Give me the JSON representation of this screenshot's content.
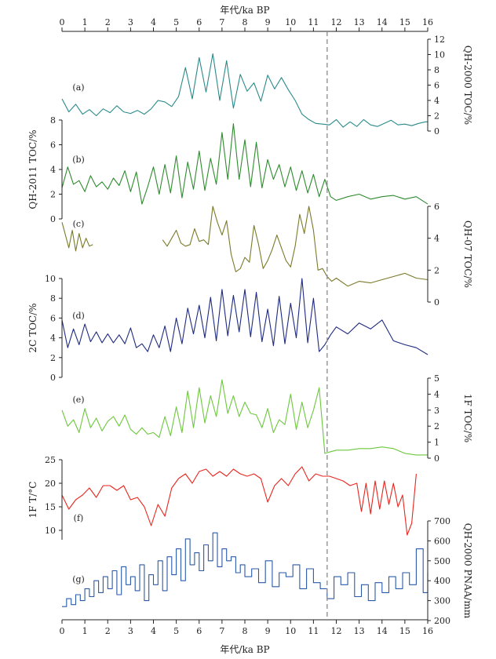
{
  "chart_data": {
    "type": "line",
    "x_axis": {
      "label_top": "年代/ka BP",
      "label_bottom": "年代/ka BP",
      "range": [
        0,
        16
      ],
      "ticks": [
        "0",
        "1",
        "2",
        "3",
        "4",
        "5",
        "6",
        "7",
        "8",
        "9",
        "10",
        "11",
        "12",
        "13",
        "14",
        "15",
        "16"
      ]
    },
    "reference_line_x": 11.6,
    "panels": [
      {
        "id": "a",
        "tag": "(a)",
        "color": "#2a8a8a",
        "ylabel": "QH-2000 TOC/%",
        "axis_side": "right",
        "ylim": [
          0,
          12
        ],
        "ticks": [
          "0",
          "2",
          "4",
          "6",
          "8",
          "10",
          "12"
        ],
        "x": [
          0,
          0.3,
          0.6,
          0.9,
          1.2,
          1.5,
          1.8,
          2.1,
          2.4,
          2.7,
          3.0,
          3.3,
          3.6,
          3.9,
          4.2,
          4.5,
          4.8,
          5.1,
          5.4,
          5.7,
          6.0,
          6.3,
          6.6,
          6.9,
          7.2,
          7.5,
          7.8,
          8.1,
          8.4,
          8.7,
          9.0,
          9.3,
          9.6,
          9.9,
          10.2,
          10.5,
          10.8,
          11.1,
          11.4,
          11.7,
          12.0,
          12.3,
          12.6,
          12.9,
          13.2,
          13.5,
          13.8,
          14.1,
          14.4,
          14.7,
          15.0,
          15.3,
          15.6,
          15.9,
          16.0
        ],
        "values": [
          4.2,
          2.5,
          3.5,
          2.2,
          2.8,
          2.0,
          2.9,
          2.4,
          3.3,
          2.5,
          2.3,
          2.7,
          2.2,
          2.9,
          4.0,
          3.8,
          3.2,
          4.5,
          8.3,
          4.2,
          9.6,
          5.1,
          10.1,
          4.0,
          9.2,
          3.0,
          7.4,
          5.2,
          6.3,
          3.9,
          7.3,
          5.5,
          7.0,
          5.4,
          4.0,
          2.2,
          1.5,
          1.0,
          0.9,
          0.8,
          1.5,
          0.5,
          1.2,
          0.6,
          1.5,
          0.8,
          0.6,
          1.0,
          1.4,
          0.8,
          0.9,
          0.7,
          1.0,
          1.2,
          1.2
        ]
      },
      {
        "id": "b",
        "tag": "(b)",
        "color": "#2e8b2e",
        "ylabel": "QH-2011 TOC/%",
        "axis_side": "left",
        "ylim": [
          0,
          8
        ],
        "ticks": [
          "0",
          "2",
          "4",
          "6",
          "8"
        ],
        "x": [
          0,
          0.25,
          0.5,
          0.75,
          1.0,
          1.25,
          1.5,
          1.75,
          2.0,
          2.25,
          2.5,
          2.75,
          3.0,
          3.25,
          3.5,
          3.75,
          4.0,
          4.25,
          4.5,
          4.75,
          5.0,
          5.25,
          5.5,
          5.75,
          6.0,
          6.25,
          6.5,
          6.75,
          7.0,
          7.25,
          7.5,
          7.75,
          8.0,
          8.25,
          8.5,
          8.75,
          9.0,
          9.25,
          9.5,
          9.75,
          10.0,
          10.25,
          10.5,
          10.75,
          11.0,
          11.25,
          11.5,
          11.75,
          12.0,
          12.5,
          13.0,
          13.5,
          14.0,
          14.5,
          15.0,
          15.5,
          16.0
        ],
        "values": [
          2.5,
          4.2,
          2.8,
          3.1,
          2.2,
          3.5,
          2.6,
          3.0,
          2.4,
          3.3,
          2.7,
          3.9,
          2.2,
          3.8,
          1.2,
          2.6,
          4.2,
          2.0,
          4.4,
          2.1,
          5.1,
          1.7,
          4.6,
          2.4,
          5.5,
          2.3,
          4.9,
          2.8,
          7.0,
          3.2,
          7.7,
          3.2,
          6.4,
          2.6,
          6.2,
          2.5,
          4.8,
          3.2,
          4.4,
          2.6,
          4.2,
          2.3,
          3.9,
          2.1,
          3.6,
          1.8,
          3.2,
          1.8,
          1.5,
          1.8,
          2.0,
          1.6,
          1.8,
          1.9,
          1.6,
          1.8,
          1.2
        ]
      },
      {
        "id": "c",
        "tag": "(c)",
        "color": "#7a7a2a",
        "ylabel": "QH-07 TOC/%",
        "axis_side": "right",
        "ylim": [
          0,
          6
        ],
        "ticks": [
          "0",
          "2",
          "4",
          "6"
        ],
        "segments": [
          {
            "x": [
              0,
              0.15,
              0.3,
              0.45,
              0.6,
              0.75,
              0.9,
              1.05,
              1.2,
              1.35
            ],
            "values": [
              5.0,
              4.2,
              3.4,
              4.5,
              3.2,
              4.3,
              3.4,
              4.0,
              3.5,
              3.6
            ]
          },
          {
            "x": [
              4.4,
              4.6,
              4.8,
              5.0,
              5.2,
              5.4,
              5.6,
              5.8,
              6.0,
              6.2,
              6.4,
              6.6,
              6.8,
              7.0,
              7.2,
              7.4,
              7.6,
              7.8,
              8.0,
              8.2,
              8.4,
              8.6,
              8.8,
              9.0,
              9.2,
              9.4,
              9.6,
              9.8,
              10.0,
              10.2,
              10.4,
              10.6,
              10.8,
              11.0,
              11.2,
              11.4,
              11.6,
              11.8,
              12.0,
              12.5,
              13.0,
              13.5,
              14.0,
              14.5,
              15.0,
              15.5,
              16.0
            ],
            "values": [
              3.9,
              3.5,
              4.0,
              4.5,
              3.7,
              3.5,
              3.6,
              4.6,
              3.8,
              3.9,
              3.6,
              6.0,
              5.0,
              4.2,
              5.1,
              3.0,
              1.9,
              2.1,
              2.8,
              2.5,
              4.8,
              3.6,
              2.1,
              2.6,
              3.3,
              4.2,
              3.4,
              2.6,
              2.2,
              3.5,
              5.5,
              4.3,
              6.0,
              4.5,
              2.0,
              2.1,
              1.6,
              1.3,
              1.5,
              1.0,
              1.3,
              1.2,
              1.4,
              1.6,
              1.8,
              1.5,
              1.4
            ]
          }
        ]
      },
      {
        "id": "d",
        "tag": "(d)",
        "color": "#1e2a80",
        "ylabel": "2C TOC/%",
        "axis_side": "left",
        "ylim": [
          0,
          10
        ],
        "ticks": [
          "0",
          "2",
          "4",
          "6",
          "8",
          "10"
        ],
        "x": [
          0,
          0.25,
          0.5,
          0.75,
          1.0,
          1.25,
          1.5,
          1.75,
          2.0,
          2.25,
          2.5,
          2.75,
          3.0,
          3.25,
          3.5,
          3.75,
          4.0,
          4.25,
          4.5,
          4.75,
          5.0,
          5.25,
          5.5,
          5.75,
          6.0,
          6.25,
          6.5,
          6.75,
          7.0,
          7.25,
          7.5,
          7.75,
          8.0,
          8.25,
          8.5,
          8.75,
          9.0,
          9.25,
          9.5,
          9.75,
          10.0,
          10.25,
          10.5,
          10.75,
          11.0,
          11.25,
          11.5,
          11.75,
          12.0,
          12.5,
          13.0,
          13.5,
          14.0,
          14.5,
          15.0,
          15.5,
          16.0
        ],
        "values": [
          5.8,
          3.0,
          4.9,
          3.3,
          5.4,
          3.6,
          4.6,
          3.5,
          4.4,
          3.5,
          4.3,
          3.4,
          5.0,
          3.0,
          3.4,
          2.6,
          4.3,
          3.0,
          5.2,
          2.6,
          6.0,
          3.4,
          7.0,
          4.4,
          7.3,
          4.0,
          8.1,
          3.7,
          8.9,
          4.2,
          8.3,
          4.6,
          8.9,
          4.1,
          8.6,
          3.6,
          6.9,
          3.2,
          8.2,
          3.4,
          7.5,
          4.0,
          10.0,
          3.5,
          8.0,
          2.6,
          3.3,
          4.3,
          5.1,
          4.4,
          5.5,
          4.9,
          5.8,
          3.7,
          3.3,
          3.0,
          2.3
        ]
      },
      {
        "id": "e",
        "tag": "(e)",
        "color": "#6cc83c",
        "ylabel": "1F TOC/%",
        "axis_side": "right",
        "ylim": [
          0,
          5
        ],
        "ticks": [
          "0",
          "1",
          "2",
          "3",
          "4",
          "5"
        ],
        "x": [
          0,
          0.25,
          0.5,
          0.75,
          1.0,
          1.25,
          1.5,
          1.75,
          2.0,
          2.25,
          2.5,
          2.75,
          3.0,
          3.25,
          3.5,
          3.75,
          4.0,
          4.25,
          4.5,
          4.75,
          5.0,
          5.25,
          5.5,
          5.75,
          6.0,
          6.25,
          6.5,
          6.75,
          7.0,
          7.25,
          7.5,
          7.75,
          8.0,
          8.25,
          8.5,
          8.75,
          9.0,
          9.25,
          9.5,
          9.75,
          10.0,
          10.25,
          10.5,
          10.75,
          11.0,
          11.25,
          11.5,
          11.75,
          12.0,
          12.5,
          13.0,
          13.5,
          14.0,
          14.5,
          15.0,
          15.5,
          16.0
        ],
        "values": [
          3.0,
          2.0,
          2.4,
          1.6,
          3.1,
          1.9,
          2.5,
          1.7,
          2.3,
          2.6,
          2.0,
          2.7,
          1.8,
          1.5,
          1.9,
          1.5,
          1.6,
          1.3,
          2.6,
          1.4,
          3.2,
          1.6,
          4.2,
          1.9,
          4.4,
          2.2,
          3.9,
          2.6,
          4.9,
          2.8,
          3.9,
          2.6,
          3.5,
          2.8,
          2.7,
          1.9,
          3.1,
          1.6,
          2.4,
          2.1,
          4.0,
          1.8,
          3.5,
          1.9,
          3.0,
          4.4,
          0.3,
          0.4,
          0.5,
          0.5,
          0.6,
          0.6,
          0.7,
          0.6,
          0.3,
          0.2,
          0.2
        ]
      },
      {
        "id": "f",
        "tag": "(f)",
        "color": "#e8261e",
        "ylabel": "1F T/°C",
        "axis_side": "left",
        "ylim": [
          8,
          25
        ],
        "ticks": [
          "10",
          "15",
          "20",
          "25"
        ],
        "x": [
          0,
          0.3,
          0.6,
          0.9,
          1.2,
          1.5,
          1.8,
          2.1,
          2.4,
          2.7,
          3.0,
          3.3,
          3.6,
          3.9,
          4.2,
          4.5,
          4.8,
          5.1,
          5.4,
          5.7,
          6.0,
          6.3,
          6.6,
          6.9,
          7.2,
          7.5,
          7.8,
          8.1,
          8.4,
          8.7,
          9.0,
          9.3,
          9.6,
          9.9,
          10.2,
          10.5,
          10.8,
          11.1,
          11.4,
          11.7,
          12.0,
          12.3,
          12.6,
          12.9,
          13.1,
          13.3,
          13.5,
          13.7,
          13.9,
          14.1,
          14.3,
          14.5,
          14.7,
          14.9,
          15.1,
          15.3,
          15.5
        ],
        "values": [
          17.5,
          14.5,
          16.5,
          17.5,
          19.0,
          17.0,
          19.5,
          19.5,
          18.5,
          19.5,
          16.5,
          17.0,
          15.0,
          11.0,
          15.5,
          13.0,
          19.0,
          21.0,
          22.0,
          20.0,
          22.5,
          23.0,
          21.5,
          22.5,
          21.5,
          23.0,
          22.0,
          21.5,
          22.0,
          21.0,
          16.0,
          19.5,
          21.0,
          19.5,
          22.0,
          23.5,
          20.5,
          22.0,
          21.5,
          21.5,
          21.0,
          20.5,
          19.5,
          20.0,
          14.0,
          20.0,
          13.5,
          20.5,
          14.5,
          20.5,
          15.5,
          20.0,
          15.0,
          17.5,
          9.0,
          11.5,
          22.0
        ]
      },
      {
        "id": "g",
        "tag": "(g)",
        "color": "#2a5aa8",
        "ylabel": "QH-2000 PNAA/mm",
        "axis_side": "right",
        "style": "step",
        "ylim": [
          200,
          700
        ],
        "ticks": [
          "200",
          "300",
          "400",
          "500",
          "600",
          "700"
        ],
        "x": [
          0,
          0.2,
          0.4,
          0.6,
          0.8,
          1.0,
          1.2,
          1.4,
          1.6,
          1.8,
          2.0,
          2.2,
          2.4,
          2.6,
          2.8,
          3.0,
          3.2,
          3.4,
          3.6,
          3.8,
          4.0,
          4.2,
          4.4,
          4.6,
          4.8,
          5.0,
          5.2,
          5.4,
          5.6,
          5.8,
          6.0,
          6.2,
          6.4,
          6.6,
          6.8,
          7.0,
          7.2,
          7.4,
          7.6,
          7.8,
          8.0,
          8.3,
          8.6,
          8.9,
          9.2,
          9.5,
          9.8,
          10.1,
          10.4,
          10.7,
          11.0,
          11.3,
          11.6,
          11.9,
          12.2,
          12.5,
          12.8,
          13.1,
          13.4,
          13.7,
          14.0,
          14.3,
          14.6,
          14.9,
          15.2,
          15.5,
          15.8,
          16.0
        ],
        "values": [
          270,
          310,
          280,
          330,
          300,
          360,
          320,
          400,
          340,
          420,
          360,
          450,
          330,
          470,
          380,
          420,
          350,
          480,
          300,
          430,
          380,
          500,
          350,
          520,
          430,
          560,
          400,
          610,
          480,
          540,
          450,
          580,
          500,
          640,
          470,
          560,
          500,
          520,
          440,
          480,
          420,
          460,
          390,
          500,
          370,
          440,
          420,
          480,
          360,
          460,
          390,
          360,
          310,
          420,
          380,
          440,
          320,
          380,
          300,
          390,
          340,
          420,
          360,
          440,
          380,
          560,
          340,
          440
        ]
      }
    ]
  }
}
